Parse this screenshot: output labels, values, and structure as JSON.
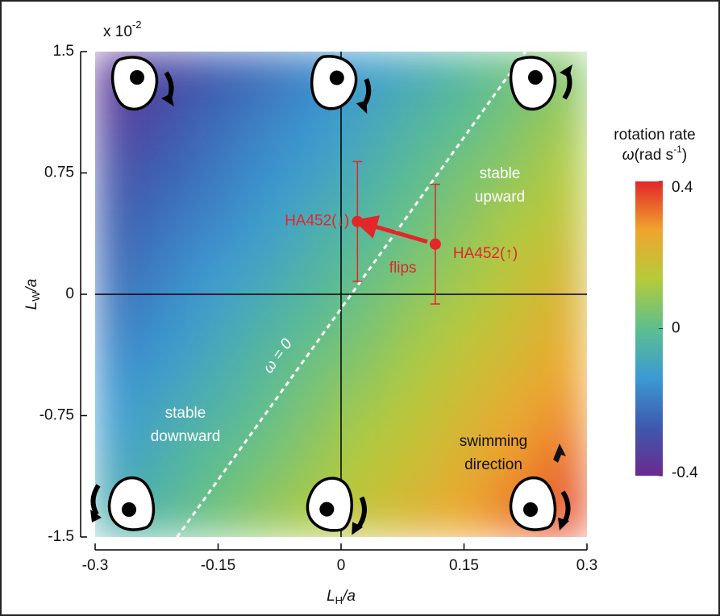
{
  "chart_data": {
    "type": "heatmap",
    "x_multiplier": {
      "base": "x 10",
      "exp": "-2"
    },
    "xlabel": {
      "main": "L",
      "sub": "H",
      "rest": "/a"
    },
    "ylabel": {
      "main": "L",
      "sub": "W",
      "rest": "/a"
    },
    "xlim": [
      -0.3,
      0.3
    ],
    "xticks": [
      -0.3,
      -0.15,
      0,
      0.15,
      0.3
    ],
    "ylim": [
      -1.5,
      1.5
    ],
    "yticks": [
      -1.5,
      -0.75,
      0,
      0.75,
      1.5
    ],
    "x": [
      -0.27,
      -0.21,
      -0.15,
      -0.09,
      -0.03,
      0.03,
      0.09,
      0.15,
      0.21,
      0.27
    ],
    "y": [
      1.35,
      1.05,
      0.75,
      0.45,
      0.15,
      -0.15,
      -0.45,
      -0.75,
      -1.05,
      -1.35
    ],
    "z": [
      [
        -0.36,
        -0.31,
        -0.26,
        -0.22,
        -0.17,
        -0.12,
        -0.08,
        -0.03,
        0.02,
        0.06
      ],
      [
        -0.33,
        -0.28,
        -0.23,
        -0.18,
        -0.14,
        -0.09,
        -0.04,
        0.0,
        0.05,
        0.1
      ],
      [
        -0.29,
        -0.25,
        -0.2,
        -0.15,
        -0.11,
        -0.06,
        -0.01,
        0.04,
        0.08,
        0.13
      ],
      [
        -0.26,
        -0.21,
        -0.17,
        -0.12,
        -0.07,
        -0.03,
        0.02,
        0.07,
        0.12,
        0.16
      ],
      [
        -0.23,
        -0.18,
        -0.13,
        -0.09,
        -0.04,
        0.01,
        0.05,
        0.1,
        0.15,
        0.2
      ],
      [
        -0.2,
        -0.15,
        -0.1,
        -0.05,
        -0.01,
        0.04,
        0.09,
        0.13,
        0.18,
        0.23
      ],
      [
        -0.16,
        -0.12,
        -0.07,
        -0.02,
        0.03,
        0.07,
        0.12,
        0.17,
        0.21,
        0.26
      ],
      [
        -0.13,
        -0.08,
        -0.04,
        0.01,
        0.06,
        0.11,
        0.15,
        0.2,
        0.25,
        0.29
      ],
      [
        -0.1,
        -0.05,
        0.0,
        0.04,
        0.09,
        0.14,
        0.18,
        0.23,
        0.28,
        0.33
      ],
      [
        -0.06,
        -0.02,
        0.03,
        0.08,
        0.12,
        0.17,
        0.22,
        0.26,
        0.31,
        0.36
      ]
    ],
    "colormap": [
      "#6b2a8f",
      "#3d5aae",
      "#3b9ad3",
      "#5dbf8e",
      "#b4cb3a",
      "#f0a52e",
      "#e2262a"
    ],
    "zlim": [
      -0.4,
      0.4
    ],
    "zticks": [
      -0.4,
      0,
      0.4
    ],
    "colorbar_title": "rotation rate",
    "colorbar_unit": {
      "symbol": "ω",
      "base": "(rad s",
      "exp": "-1",
      "close": ")"
    },
    "zero_line": {
      "label": "ω = 0",
      "x": [
        -0.2,
        0.225
      ],
      "y": [
        -1.5,
        1.5
      ]
    },
    "points": [
      {
        "name": "HA452(↓)",
        "x": 0.02,
        "y": 0.45,
        "yerr": 0.37
      },
      {
        "name": "HA452(↑)",
        "x": 0.115,
        "y": 0.31,
        "yerr": 0.37
      }
    ],
    "color": "#e2262a",
    "arrow_label": "flips",
    "annotations": [
      [
        "stable",
        "upward"
      ],
      [
        "stable",
        "downward"
      ],
      [
        "swimming",
        "direction"
      ]
    ]
  }
}
